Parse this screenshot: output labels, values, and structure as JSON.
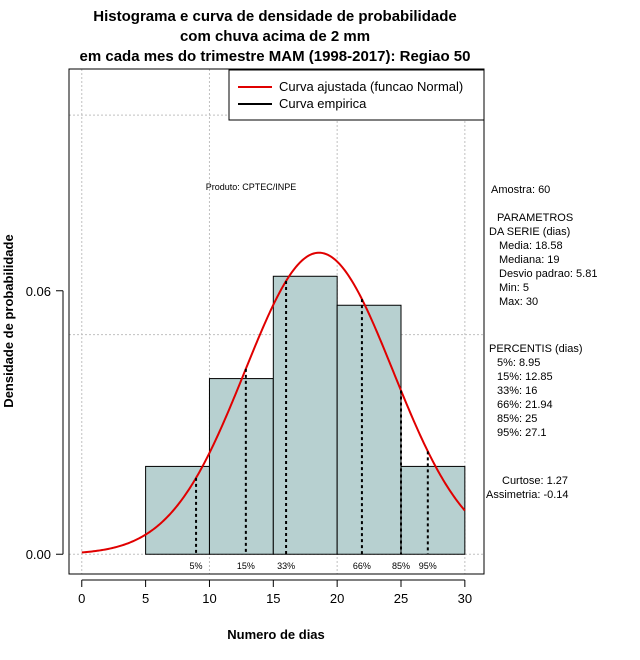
{
  "chart_data": {
    "type": "histogram",
    "title": [
      "Histograma e curva de densidade de probabilidade",
      "com chuva acima de 2 mm",
      "em cada mes do trimestre MAM (1998-2017): Regiao 50"
    ],
    "xlabel": "Numero de dias",
    "ylabel": "Densidade de probabilidade",
    "xlim": [
      -1,
      31.5
    ],
    "ylim": [
      -0.0045,
      0.1105
    ],
    "x_ticks": [
      0,
      5,
      10,
      15,
      20,
      25,
      30
    ],
    "x_tick_labels": [
      "0",
      "5",
      "10",
      "15",
      "20",
      "25",
      "30"
    ],
    "y_ticks": [
      0.0,
      0.06
    ],
    "y_tick_labels": [
      "0.00",
      "0.06"
    ],
    "grid": true,
    "grid_x": [
      0,
      10,
      20,
      30
    ],
    "grid_y": [
      0.0,
      0.05,
      0.1
    ],
    "bins": [
      {
        "from": 5,
        "to": 10,
        "density": 0.02
      },
      {
        "from": 10,
        "to": 15,
        "density": 0.04
      },
      {
        "from": 15,
        "to": 20,
        "density": 0.0633
      },
      {
        "from": 20,
        "to": 25,
        "density": 0.0567
      },
      {
        "from": 25,
        "to": 30,
        "density": 0.02
      }
    ],
    "normal_fit": {
      "mean": 18.58,
      "sd": 5.81,
      "x_range": [
        0,
        30
      ]
    },
    "percentile_markers": [
      {
        "x": 8.95,
        "label": "5%"
      },
      {
        "x": 12.85,
        "label": "15%"
      },
      {
        "x": 16,
        "label": "33%"
      },
      {
        "x": 21.94,
        "label": "66%"
      },
      {
        "x": 25,
        "label": "85%"
      },
      {
        "x": 27.1,
        "label": "95%"
      }
    ],
    "legend": [
      {
        "label": "Curva ajustada (funcao Normal)",
        "color": "#e00000"
      },
      {
        "label": "Curva empirica",
        "color": "#000000"
      }
    ],
    "legend_position": "top-right",
    "annotation": "Produto: CPTEC/INPE",
    "colors": {
      "bar_fill": "#b7d0d0",
      "curve": "#e00000",
      "grid": "#c0c0c0"
    }
  },
  "side_panel": {
    "sample": "Amostra: 60",
    "params_title_1": "PARAMETROS",
    "params_title_2": "DA SERIE (dias)",
    "media": "Media: 18.58",
    "mediana": "Mediana: 19",
    "desvio": "Desvio padrao: 5.81",
    "min": "Min: 5",
    "max": "Max: 30",
    "percentis_title": "PERCENTIS (dias)",
    "p5": "5%: 8.95",
    "p15": "15%: 12.85",
    "p33": "33%: 16",
    "p66": "66%: 21.94",
    "p85": "85%: 25",
    "p95": "95%: 27.1",
    "curtose": "Curtose: 1.27",
    "assimetria": "Assimetria: -0.14"
  }
}
